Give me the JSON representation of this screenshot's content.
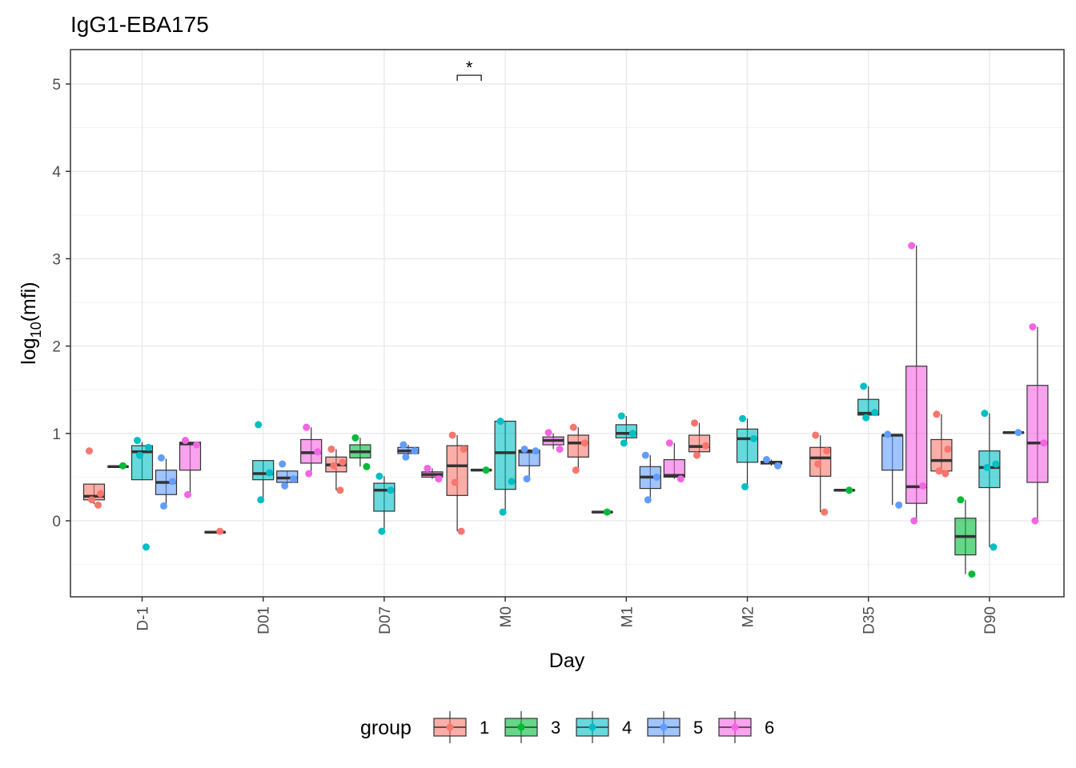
{
  "chart_data": {
    "type": "box",
    "title": "IgG1-EBA175",
    "xlabel": "Day",
    "ylabel_base": "log",
    "ylabel_sub": "10",
    "ylabel_arg": "(mfi)",
    "ylim": [
      -0.88,
      5.4
    ],
    "yticks": [
      0,
      1,
      2,
      3,
      4,
      5
    ],
    "grid": true,
    "legend_position": "bottom",
    "legend_title": "group",
    "categories": [
      "D-1",
      "D01",
      "D07",
      "M0",
      "M1",
      "M2",
      "D35",
      "D90"
    ],
    "groups": [
      {
        "name": "1",
        "color": "#F8766D"
      },
      {
        "name": "3",
        "color": "#00BA38"
      },
      {
        "name": "4",
        "color": "#00BFC4"
      },
      {
        "name": "5",
        "color": "#619CFF"
      },
      {
        "name": "6",
        "color": "#F564E3"
      }
    ],
    "boxes": [
      {
        "cat": 0,
        "group": "1",
        "slot": 0,
        "min": 0.19,
        "q1": 0.24,
        "median": 0.28,
        "q3": 0.42,
        "max": 0.42,
        "points": [
          0.8,
          0.31,
          0.24,
          0.18
        ]
      },
      {
        "cat": 0,
        "group": "3",
        "slot": 1,
        "min": 0.62,
        "q1": 0.62,
        "median": 0.62,
        "q3": 0.62,
        "max": 0.62,
        "points": [
          0.63
        ]
      },
      {
        "cat": 0,
        "group": "4",
        "slot": 2,
        "min": 0.47,
        "q1": 0.47,
        "median": 0.79,
        "q3": 0.86,
        "max": 0.9,
        "points": [
          0.92,
          0.84,
          0.75,
          -0.3
        ]
      },
      {
        "cat": 0,
        "group": "5",
        "slot": 3,
        "min": 0.18,
        "q1": 0.3,
        "median": 0.44,
        "q3": 0.58,
        "max": 0.71,
        "points": [
          0.72,
          0.45,
          0.17
        ]
      },
      {
        "cat": 0,
        "group": "6",
        "slot": 4,
        "min": 0.3,
        "q1": 0.58,
        "median": 0.88,
        "q3": 0.9,
        "max": 0.9,
        "points": [
          0.92,
          0.87,
          0.3
        ]
      },
      {
        "cat": 1,
        "group": "1",
        "slot": 0,
        "min": -0.13,
        "q1": -0.13,
        "median": -0.13,
        "q3": -0.13,
        "max": -0.13,
        "points": [
          -0.12
        ]
      },
      {
        "cat": 1,
        "group": "4",
        "slot": 2,
        "min": 0.24,
        "q1": 0.47,
        "median": 0.54,
        "q3": 0.69,
        "max": 0.69,
        "points": [
          1.1,
          0.55,
          0.24
        ]
      },
      {
        "cat": 1,
        "group": "5",
        "slot": 3,
        "min": 0.4,
        "q1": 0.44,
        "median": 0.49,
        "q3": 0.57,
        "max": 0.57,
        "points": [
          0.65,
          0.48,
          0.4
        ]
      },
      {
        "cat": 1,
        "group": "6",
        "slot": 4,
        "min": 0.54,
        "q1": 0.66,
        "median": 0.78,
        "q3": 0.93,
        "max": 1.07,
        "points": [
          1.07,
          0.79,
          0.54
        ]
      },
      {
        "cat": 2,
        "group": "1",
        "slot": 0,
        "min": 0.35,
        "q1": 0.56,
        "median": 0.64,
        "q3": 0.73,
        "max": 0.82,
        "points": [
          0.82,
          0.67,
          0.63,
          0.35
        ]
      },
      {
        "cat": 2,
        "group": "3",
        "slot": 1,
        "min": 0.62,
        "q1": 0.72,
        "median": 0.79,
        "q3": 0.87,
        "max": 0.95,
        "points": [
          0.95,
          0.62
        ]
      },
      {
        "cat": 2,
        "group": "4",
        "slot": 2,
        "min": -0.12,
        "q1": 0.11,
        "median": 0.35,
        "q3": 0.43,
        "max": 0.51,
        "points": [
          0.51,
          0.35,
          -0.12
        ]
      },
      {
        "cat": 2,
        "group": "5",
        "slot": 3,
        "min": 0.73,
        "q1": 0.77,
        "median": 0.8,
        "q3": 0.84,
        "max": 0.87,
        "points": [
          0.87,
          0.8,
          0.73
        ]
      },
      {
        "cat": 2,
        "group": "6",
        "slot": 4,
        "min": 0.48,
        "q1": 0.5,
        "median": 0.53,
        "q3": 0.56,
        "max": 0.6,
        "points": [
          0.6,
          0.48
        ]
      },
      {
        "cat": 3,
        "group": "1",
        "slot": 0,
        "min": -0.12,
        "q1": 0.29,
        "median": 0.63,
        "q3": 0.86,
        "max": 0.98,
        "points": [
          0.98,
          0.82,
          0.44,
          -0.12
        ]
      },
      {
        "cat": 3,
        "group": "3",
        "slot": 1,
        "min": 0.58,
        "q1": 0.58,
        "median": 0.58,
        "q3": 0.58,
        "max": 0.58,
        "points": [
          0.58
        ]
      },
      {
        "cat": 3,
        "group": "4",
        "slot": 2,
        "min": 0.1,
        "q1": 0.36,
        "median": 0.78,
        "q3": 1.14,
        "max": 1.14,
        "points": [
          1.14,
          0.45,
          0.1
        ]
      },
      {
        "cat": 3,
        "group": "5",
        "slot": 3,
        "min": 0.47,
        "q1": 0.63,
        "median": 0.79,
        "q3": 0.81,
        "max": 0.82,
        "points": [
          0.82,
          0.8,
          0.48
        ]
      },
      {
        "cat": 3,
        "group": "6",
        "slot": 4,
        "min": 0.82,
        "q1": 0.87,
        "median": 0.92,
        "q3": 0.96,
        "max": 1.0,
        "points": [
          1.01,
          0.82
        ]
      },
      {
        "cat": 4,
        "group": "1",
        "slot": 0,
        "min": 0.58,
        "q1": 0.73,
        "median": 0.89,
        "q3": 0.98,
        "max": 1.07,
        "points": [
          1.07,
          0.89,
          0.58
        ]
      },
      {
        "cat": 4,
        "group": "3",
        "slot": 1,
        "min": 0.1,
        "q1": 0.1,
        "median": 0.1,
        "q3": 0.1,
        "max": 0.1,
        "points": [
          0.1
        ]
      },
      {
        "cat": 4,
        "group": "4",
        "slot": 2,
        "min": 0.89,
        "q1": 0.95,
        "median": 1.0,
        "q3": 1.1,
        "max": 1.2,
        "points": [
          1.2,
          1.0,
          0.89
        ]
      },
      {
        "cat": 4,
        "group": "5",
        "slot": 3,
        "min": 0.24,
        "q1": 0.37,
        "median": 0.5,
        "q3": 0.62,
        "max": 0.75,
        "points": [
          0.75,
          0.5,
          0.24
        ]
      },
      {
        "cat": 4,
        "group": "6",
        "slot": 4,
        "min": 0.48,
        "q1": 0.5,
        "median": 0.52,
        "q3": 0.7,
        "max": 0.89,
        "points": [
          0.89,
          0.48
        ]
      },
      {
        "cat": 5,
        "group": "1",
        "slot": 0,
        "min": 0.75,
        "q1": 0.79,
        "median": 0.85,
        "q3": 0.98,
        "max": 1.12,
        "points": [
          1.12,
          0.86,
          0.75
        ]
      },
      {
        "cat": 5,
        "group": "4",
        "slot": 2,
        "min": 0.39,
        "q1": 0.67,
        "median": 0.94,
        "q3": 1.05,
        "max": 1.17,
        "points": [
          1.17,
          0.94,
          0.39
        ]
      },
      {
        "cat": 5,
        "group": "5",
        "slot": 3,
        "min": 0.63,
        "q1": 0.65,
        "median": 0.67,
        "q3": 0.68,
        "max": 0.7,
        "points": [
          0.7,
          0.63
        ]
      },
      {
        "cat": 6,
        "group": "1",
        "slot": 0,
        "min": 0.1,
        "q1": 0.51,
        "median": 0.72,
        "q3": 0.84,
        "max": 0.98,
        "points": [
          0.98,
          0.8,
          0.65,
          0.1
        ]
      },
      {
        "cat": 6,
        "group": "3",
        "slot": 1,
        "min": 0.35,
        "q1": 0.35,
        "median": 0.35,
        "q3": 0.35,
        "max": 0.35,
        "points": [
          0.35
        ]
      },
      {
        "cat": 6,
        "group": "4",
        "slot": 2,
        "min": 1.18,
        "q1": 1.21,
        "median": 1.23,
        "q3": 1.39,
        "max": 1.54,
        "points": [
          1.54,
          1.24,
          1.18
        ]
      },
      {
        "cat": 6,
        "group": "5",
        "slot": 3,
        "min": 0.18,
        "q1": 0.58,
        "median": 0.98,
        "q3": 0.98,
        "max": 0.99,
        "points": [
          0.99,
          0.18
        ]
      },
      {
        "cat": 6,
        "group": "6",
        "slot": 4,
        "min": 0.0,
        "q1": 0.2,
        "median": 0.39,
        "q3": 1.77,
        "max": 3.15,
        "points": [
          3.15,
          0.4,
          0.0
        ]
      },
      {
        "cat": 7,
        "group": "1",
        "slot": 0,
        "min": 0.54,
        "q1": 0.57,
        "median": 0.69,
        "q3": 0.93,
        "max": 1.22,
        "points": [
          1.22,
          0.82,
          0.57,
          0.54
        ]
      },
      {
        "cat": 7,
        "group": "3",
        "slot": 1,
        "min": -0.61,
        "q1": -0.39,
        "median": -0.18,
        "q3": 0.03,
        "max": 0.24,
        "points": [
          0.24,
          -0.61
        ]
      },
      {
        "cat": 7,
        "group": "4",
        "slot": 2,
        "min": -0.3,
        "q1": 0.38,
        "median": 0.61,
        "q3": 0.8,
        "max": 1.23,
        "points": [
          1.23,
          0.65,
          0.61,
          -0.3
        ]
      },
      {
        "cat": 7,
        "group": "5",
        "slot": 3,
        "min": 1.01,
        "q1": 1.01,
        "median": 1.01,
        "q3": 1.01,
        "max": 1.01,
        "points": [
          1.01
        ]
      },
      {
        "cat": 7,
        "group": "6",
        "slot": 4,
        "min": 0.0,
        "q1": 0.44,
        "median": 0.89,
        "q3": 1.55,
        "max": 2.22,
        "points": [
          2.22,
          0.89,
          0.0
        ]
      }
    ],
    "annotations": [
      {
        "text": "*",
        "cat": 3,
        "slot_from": 0,
        "slot_to": 1,
        "y": 5.1
      }
    ]
  }
}
